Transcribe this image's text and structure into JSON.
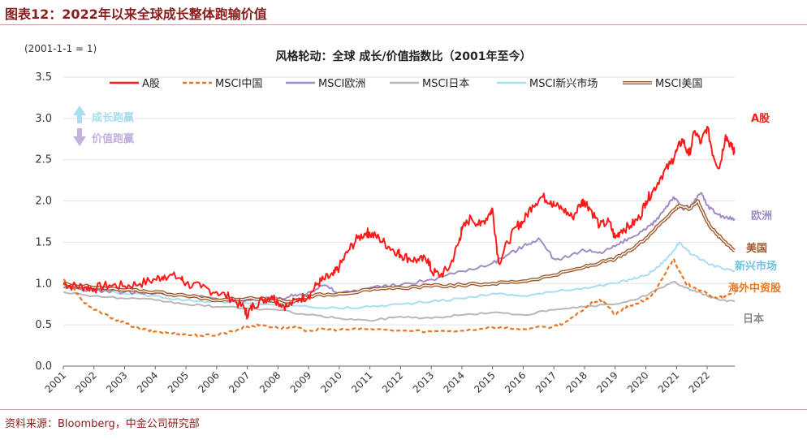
{
  "figure": {
    "title": "图表12：2022年以来全球成长整体跑输价值",
    "source": "资料来源：Bloomberg，中金公司研究部"
  },
  "chart_data": {
    "type": "line",
    "title": "风格轮动：全球 成长/价值指数比（2001年至今）",
    "unit_note": "(2001-1-1 = 1)",
    "xlabel": "",
    "ylabel": "",
    "ylim": [
      0,
      3.5
    ],
    "yticks": [
      "0.0",
      "0.5",
      "1.0",
      "1.5",
      "2.0",
      "2.5",
      "3.0",
      "3.5"
    ],
    "xlim": [
      2001,
      2022.9
    ],
    "xticks": [
      "2001",
      "2002",
      "2003",
      "2004",
      "2005",
      "2006",
      "2007",
      "2008",
      "2009",
      "2010",
      "2011",
      "2012",
      "2013",
      "2014",
      "2015",
      "2016",
      "2017",
      "2018",
      "2019",
      "2020",
      "2021",
      "2022"
    ],
    "grid": "horizontal",
    "legend_position": "top",
    "annotations": {
      "growth_wins": "成长跑赢",
      "value_wins": "价值跑赢"
    },
    "series": [
      {
        "name": "A股",
        "end_label": "A股",
        "color": "#ff1a1a",
        "style": "solid",
        "x": [
          2001,
          2001.3,
          2001.7,
          2002,
          2002.5,
          2003,
          2003.5,
          2004,
          2004.3,
          2004.8,
          2005,
          2005.5,
          2006,
          2006.5,
          2006.9,
          2007,
          2007.2,
          2007.5,
          2007.8,
          2008,
          2008.3,
          2008.7,
          2009,
          2009.3,
          2009.5,
          2009.8,
          2010,
          2010.3,
          2010.6,
          2010.9,
          2011,
          2011.3,
          2011.6,
          2011.9,
          2012,
          2012.3,
          2012.6,
          2012.9,
          2013,
          2013.3,
          2013.6,
          2013.9,
          2014,
          2014.3,
          2014.6,
          2014.9,
          2015,
          2015.2,
          2015.5,
          2015.8,
          2016,
          2016.3,
          2016.6,
          2016.9,
          2017,
          2017.3,
          2017.6,
          2017.9,
          2018,
          2018.2,
          2018.5,
          2018.8,
          2019,
          2019.2,
          2019.5,
          2019.8,
          2020,
          2020.2,
          2020.5,
          2020.8,
          2021,
          2021.2,
          2021.4,
          2021.6,
          2021.8,
          2022,
          2022.2,
          2022.4,
          2022.6,
          2022.8,
          2022.9
        ],
        "values": [
          1.0,
          0.97,
          0.96,
          0.94,
          0.98,
          0.97,
          1.0,
          1.05,
          1.1,
          1.07,
          1.0,
          0.95,
          0.9,
          0.82,
          0.7,
          0.62,
          0.74,
          0.8,
          0.85,
          0.78,
          0.72,
          0.82,
          0.85,
          1.0,
          1.05,
          1.1,
          1.2,
          1.4,
          1.55,
          1.62,
          1.6,
          1.55,
          1.45,
          1.38,
          1.35,
          1.3,
          1.28,
          1.3,
          1.15,
          1.1,
          1.2,
          1.5,
          1.65,
          1.8,
          1.7,
          1.85,
          1.9,
          1.25,
          1.5,
          1.7,
          1.75,
          1.95,
          2.05,
          2.0,
          1.95,
          1.9,
          1.8,
          1.98,
          2.0,
          1.9,
          1.7,
          1.75,
          1.55,
          1.65,
          1.7,
          1.8,
          2.0,
          2.1,
          2.3,
          2.45,
          2.6,
          2.75,
          2.55,
          2.85,
          2.7,
          2.9,
          2.55,
          2.4,
          2.8,
          2.65,
          2.58
        ]
      },
      {
        "name": "MSCI中国",
        "end_label": "海外中资股",
        "color": "#e87722",
        "style": "dashed",
        "x": [
          2001,
          2001.3,
          2001.6,
          2002,
          2002.5,
          2003,
          2003.5,
          2004,
          2004.5,
          2005,
          2005.5,
          2006,
          2006.5,
          2007,
          2007.5,
          2008,
          2008.5,
          2009,
          2009.5,
          2010,
          2011,
          2012,
          2013,
          2014,
          2015,
          2016,
          2017,
          2017.5,
          2018,
          2018.3,
          2018.6,
          2019,
          2019.3,
          2019.6,
          2020,
          2020.3,
          2020.6,
          2020.9,
          2021.1,
          2021.3,
          2021.6,
          2022,
          2022.3,
          2022.6,
          2022.9
        ],
        "values": [
          1.05,
          0.95,
          0.8,
          0.68,
          0.6,
          0.52,
          0.45,
          0.42,
          0.4,
          0.38,
          0.37,
          0.38,
          0.42,
          0.48,
          0.5,
          0.46,
          0.47,
          0.43,
          0.45,
          0.44,
          0.45,
          0.43,
          0.42,
          0.43,
          0.47,
          0.45,
          0.48,
          0.55,
          0.7,
          0.78,
          0.8,
          0.62,
          0.7,
          0.75,
          0.8,
          0.9,
          1.1,
          1.3,
          1.15,
          1.0,
          0.95,
          0.88,
          0.82,
          0.85,
          0.88
        ]
      },
      {
        "name": "MSCI欧洲",
        "end_label": "欧洲",
        "color": "#a08cc4",
        "style": "solid",
        "x": [
          2001,
          2002,
          2003,
          2004,
          2005,
          2006,
          2007,
          2008,
          2008.5,
          2009,
          2009.5,
          2010,
          2011,
          2012,
          2013,
          2014,
          2015,
          2015.5,
          2016,
          2016.5,
          2017,
          2017.5,
          2018,
          2018.5,
          2019,
          2019.5,
          2020,
          2020.3,
          2020.6,
          2020.9,
          2021.2,
          2021.5,
          2021.8,
          2022,
          2022.3,
          2022.6,
          2022.9
        ],
        "values": [
          0.95,
          0.92,
          0.9,
          0.88,
          0.85,
          0.82,
          0.8,
          0.82,
          0.85,
          0.9,
          0.98,
          0.88,
          0.95,
          0.98,
          1.05,
          1.15,
          1.25,
          1.35,
          1.45,
          1.55,
          1.3,
          1.32,
          1.4,
          1.38,
          1.45,
          1.55,
          1.65,
          1.75,
          1.9,
          2.05,
          1.9,
          1.95,
          2.1,
          1.95,
          1.85,
          1.8,
          1.78
        ]
      },
      {
        "name": "MSCI日本",
        "end_label": "日本",
        "color": "#b8b8b8",
        "style": "solid",
        "x": [
          2001,
          2002,
          2003,
          2004,
          2005,
          2006,
          2007,
          2008,
          2009,
          2010,
          2011,
          2012,
          2013,
          2014,
          2015,
          2016,
          2017,
          2018,
          2019,
          2020,
          2020.5,
          2020.9,
          2021.3,
          2021.7,
          2022,
          2022.5,
          2022.9
        ],
        "values": [
          0.9,
          0.85,
          0.82,
          0.8,
          0.75,
          0.72,
          0.7,
          0.68,
          0.62,
          0.58,
          0.55,
          0.6,
          0.58,
          0.62,
          0.65,
          0.62,
          0.68,
          0.72,
          0.75,
          0.85,
          0.95,
          1.02,
          0.95,
          0.9,
          0.85,
          0.8,
          0.78
        ]
      },
      {
        "name": "MSCI新兴市场",
        "end_label": "新兴市场",
        "color": "#a8def0",
        "style": "solid",
        "x": [
          2001,
          2002,
          2003,
          2004,
          2005,
          2006,
          2007,
          2008,
          2009,
          2010,
          2011,
          2012,
          2013,
          2014,
          2015,
          2016,
          2017,
          2018,
          2019,
          2019.5,
          2020,
          2020.4,
          2020.8,
          2021.1,
          2021.5,
          2022,
          2022.5,
          2022.9
        ],
        "values": [
          0.95,
          0.92,
          0.88,
          0.85,
          0.8,
          0.78,
          0.76,
          0.75,
          0.72,
          0.7,
          0.72,
          0.75,
          0.78,
          0.82,
          0.88,
          0.85,
          0.9,
          0.95,
          1.0,
          1.05,
          1.1,
          1.2,
          1.35,
          1.5,
          1.35,
          1.25,
          1.18,
          1.15
        ]
      },
      {
        "name": "MSCI美国",
        "end_label": "美国",
        "color": "#9c5a2e",
        "style": "double",
        "x": [
          2001,
          2002,
          2003,
          2004,
          2005,
          2006,
          2007,
          2008,
          2008.5,
          2009,
          2010,
          2011,
          2012,
          2013,
          2014,
          2015,
          2016,
          2017,
          2018,
          2018.5,
          2019,
          2019.5,
          2020,
          2020.4,
          2020.8,
          2021.1,
          2021.4,
          2021.7,
          2022,
          2022.3,
          2022.6,
          2022.9
        ],
        "values": [
          1.0,
          0.95,
          0.92,
          0.9,
          0.85,
          0.8,
          0.82,
          0.8,
          0.78,
          0.85,
          0.88,
          0.92,
          0.95,
          0.97,
          0.98,
          1.0,
          1.03,
          1.1,
          1.2,
          1.25,
          1.3,
          1.4,
          1.55,
          1.7,
          1.85,
          1.95,
          1.9,
          2.0,
          1.75,
          1.6,
          1.5,
          1.4
        ]
      }
    ]
  }
}
